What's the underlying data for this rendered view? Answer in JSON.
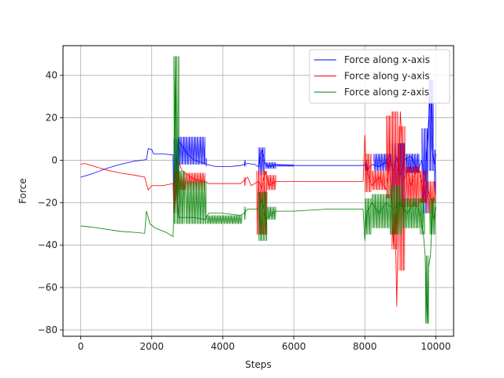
{
  "chart_data": {
    "type": "line",
    "title": "",
    "xlabel": "Steps",
    "ylabel": "Force",
    "xlim": [
      -500,
      10500
    ],
    "ylim": [
      -83,
      54
    ],
    "x_ticks": [
      0,
      2000,
      4000,
      6000,
      8000,
      10000
    ],
    "y_ticks": [
      -80,
      -60,
      -40,
      -20,
      0,
      20,
      40
    ],
    "grid": true,
    "legend_position": "top-right",
    "series": [
      {
        "name": "Force along x-axis",
        "color": "#0000ff",
        "points": [
          [
            0,
            -8
          ],
          [
            300,
            -6.5
          ],
          [
            700,
            -4
          ],
          [
            1100,
            -2
          ],
          [
            1500,
            -0.5
          ],
          [
            1850,
            0.3
          ],
          [
            1900,
            5.5
          ],
          [
            2000,
            5
          ],
          [
            2050,
            3
          ],
          [
            2300,
            3
          ],
          [
            2600,
            2.5
          ],
          [
            2620,
            -25
          ],
          [
            2650,
            -10
          ],
          [
            2700,
            -2
          ],
          [
            2750,
            10
          ],
          [
            2800,
            8
          ],
          [
            3000,
            3
          ],
          [
            3200,
            0
          ],
          [
            3400,
            -1
          ],
          [
            3550,
            -2
          ],
          [
            3800,
            -3
          ],
          [
            4200,
            -3
          ],
          [
            4500,
            -2.5
          ],
          [
            4700,
            -1.5
          ],
          [
            4900,
            -2
          ],
          [
            5000,
            -3
          ],
          [
            5100,
            5
          ],
          [
            5200,
            -2
          ],
          [
            5300,
            -3
          ],
          [
            5500,
            -2
          ],
          [
            6000,
            -2.5
          ],
          [
            7000,
            -2.5
          ],
          [
            7950,
            -2.5
          ],
          [
            8000,
            -2
          ],
          [
            8050,
            -5
          ],
          [
            8200,
            -2
          ],
          [
            8400,
            -3
          ],
          [
            8600,
            -1
          ],
          [
            8700,
            3
          ],
          [
            8800,
            -5
          ],
          [
            8900,
            2
          ],
          [
            9000,
            -7
          ],
          [
            9100,
            0
          ],
          [
            9300,
            2
          ],
          [
            9500,
            -5
          ],
          [
            9600,
            0
          ],
          [
            9700,
            -10
          ],
          [
            9800,
            20
          ],
          [
            9850,
            38
          ],
          [
            9900,
            5
          ],
          [
            9950,
            -2
          ],
          [
            10000,
            3
          ]
        ],
        "bands": [
          [
            2620,
            2780,
            -25,
            10
          ],
          [
            2750,
            3520,
            -2,
            11
          ],
          [
            3520,
            3560,
            -3,
            1
          ],
          [
            4600,
            4650,
            -3,
            0
          ],
          [
            5000,
            5200,
            -7,
            6
          ],
          [
            5200,
            5500,
            -4,
            -1
          ],
          [
            5500,
            6000,
            -3,
            -2
          ],
          [
            8000,
            8100,
            -5,
            0
          ],
          [
            8250,
            8750,
            -5,
            3
          ],
          [
            8750,
            9150,
            -22,
            8
          ],
          [
            9150,
            9550,
            -6,
            3
          ],
          [
            9600,
            9800,
            -25,
            15
          ],
          [
            9800,
            9950,
            -5,
            38
          ],
          [
            9950,
            10000,
            -15,
            5
          ]
        ]
      },
      {
        "name": "Force along y-axis",
        "color": "#ff0000",
        "points": [
          [
            0,
            -2
          ],
          [
            100,
            -1.5
          ],
          [
            300,
            -2.5
          ],
          [
            700,
            -4.5
          ],
          [
            1100,
            -6
          ],
          [
            1500,
            -7
          ],
          [
            1800,
            -8
          ],
          [
            1900,
            -14
          ],
          [
            2000,
            -12
          ],
          [
            2300,
            -12
          ],
          [
            2600,
            -11
          ],
          [
            2620,
            -25
          ],
          [
            2650,
            -18
          ],
          [
            2700,
            -3
          ],
          [
            2750,
            0
          ],
          [
            2850,
            -5
          ],
          [
            3200,
            -9
          ],
          [
            3500,
            -10
          ],
          [
            3600,
            -11
          ],
          [
            4000,
            -11
          ],
          [
            4500,
            -11
          ],
          [
            4700,
            -8
          ],
          [
            4800,
            -12
          ],
          [
            5000,
            -10
          ],
          [
            5100,
            -13
          ],
          [
            5200,
            -5
          ],
          [
            5300,
            -12
          ],
          [
            5500,
            -10
          ],
          [
            6000,
            -10
          ],
          [
            7000,
            -10
          ],
          [
            7950,
            -10
          ],
          [
            8000,
            12
          ],
          [
            8050,
            -5
          ],
          [
            8200,
            -12
          ],
          [
            8400,
            -8
          ],
          [
            8600,
            -14
          ],
          [
            8700,
            0
          ],
          [
            8800,
            -40
          ],
          [
            8850,
            -25
          ],
          [
            8900,
            -69
          ],
          [
            8950,
            -10
          ],
          [
            9000,
            23
          ],
          [
            9100,
            -10
          ],
          [
            9200,
            -5
          ],
          [
            9300,
            -12
          ],
          [
            9400,
            -7
          ],
          [
            9500,
            -3
          ],
          [
            9600,
            -10
          ],
          [
            9700,
            -20
          ],
          [
            9800,
            -15
          ],
          [
            9900,
            -20
          ],
          [
            10000,
            -15
          ]
        ],
        "bands": [
          [
            2620,
            2780,
            -25,
            -5
          ],
          [
            2750,
            3520,
            -14,
            -6
          ],
          [
            4600,
            4650,
            -12,
            -8
          ],
          [
            4950,
            5250,
            -35,
            -5
          ],
          [
            5250,
            5500,
            -14,
            -7
          ],
          [
            8000,
            8200,
            -15,
            3
          ],
          [
            8200,
            8600,
            -14,
            -5
          ],
          [
            8600,
            8750,
            -18,
            21
          ],
          [
            8750,
            8950,
            -42,
            23
          ],
          [
            8950,
            9150,
            -52,
            16
          ],
          [
            9150,
            9550,
            -22,
            -3
          ],
          [
            9550,
            9750,
            -20,
            -5
          ],
          [
            9750,
            9950,
            -25,
            -10
          ],
          [
            9950,
            10000,
            -20,
            -10
          ]
        ]
      },
      {
        "name": "Force along z-axis",
        "color": "#008000",
        "points": [
          [
            0,
            -31
          ],
          [
            300,
            -31.5
          ],
          [
            700,
            -32.5
          ],
          [
            1100,
            -33.5
          ],
          [
            1500,
            -34
          ],
          [
            1800,
            -34.5
          ],
          [
            1850,
            -24
          ],
          [
            1950,
            -30
          ],
          [
            2100,
            -32
          ],
          [
            2400,
            -34
          ],
          [
            2600,
            -36
          ],
          [
            2620,
            -25
          ],
          [
            2650,
            49
          ],
          [
            2680,
            10
          ],
          [
            2700,
            -10
          ],
          [
            2750,
            -27
          ],
          [
            3000,
            -27
          ],
          [
            3200,
            -27
          ],
          [
            3500,
            -28
          ],
          [
            3600,
            -25
          ],
          [
            4000,
            -25
          ],
          [
            4500,
            -26
          ],
          [
            4600,
            -25
          ],
          [
            4700,
            -23
          ],
          [
            5000,
            -23
          ],
          [
            5100,
            -18
          ],
          [
            5200,
            -28
          ],
          [
            5400,
            -25
          ],
          [
            5500,
            -24
          ],
          [
            6000,
            -24
          ],
          [
            7000,
            -23
          ],
          [
            7950,
            -23
          ],
          [
            8000,
            -38
          ],
          [
            8050,
            -25
          ],
          [
            8200,
            -20
          ],
          [
            8400,
            -25
          ],
          [
            8600,
            -20
          ],
          [
            8800,
            -23
          ],
          [
            9000,
            -20
          ],
          [
            9200,
            -25
          ],
          [
            9400,
            -20
          ],
          [
            9550,
            -25
          ],
          [
            9650,
            -35
          ],
          [
            9700,
            -45
          ],
          [
            9750,
            -77
          ],
          [
            9800,
            -50
          ],
          [
            9850,
            -45
          ],
          [
            9900,
            -25
          ],
          [
            9950,
            -28
          ],
          [
            10000,
            -22
          ]
        ],
        "bands": [
          [
            2620,
            2780,
            -30,
            49
          ],
          [
            2750,
            2950,
            -30,
            -5
          ],
          [
            2950,
            3550,
            -30,
            -10
          ],
          [
            3550,
            4550,
            -30,
            -26
          ],
          [
            4600,
            4650,
            -28,
            -22
          ],
          [
            5000,
            5250,
            -38,
            -15
          ],
          [
            5250,
            5500,
            -28,
            -22
          ],
          [
            8000,
            8200,
            -35,
            -18
          ],
          [
            8200,
            8700,
            -32,
            -16
          ],
          [
            8700,
            9050,
            -35,
            -12
          ],
          [
            9050,
            9550,
            -32,
            -18
          ],
          [
            9550,
            9700,
            -35,
            -18
          ],
          [
            9700,
            9820,
            -77,
            -45
          ],
          [
            9820,
            10000,
            -35,
            -18
          ]
        ]
      }
    ]
  }
}
